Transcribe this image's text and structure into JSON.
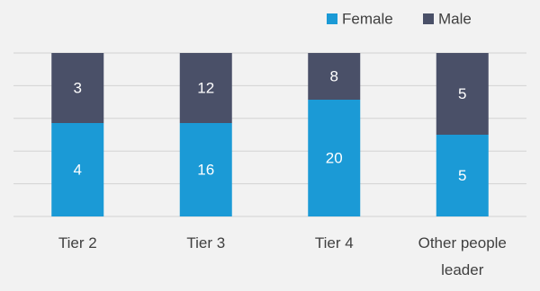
{
  "chart_data": {
    "type": "bar",
    "stacking": "percent",
    "categories": [
      "Tier 2",
      "Tier 3",
      "Tier 4",
      "Other people leader"
    ],
    "series": [
      {
        "name": "Female",
        "color": "#1b9ad6",
        "values": [
          4,
          16,
          20,
          5
        ]
      },
      {
        "name": "Male",
        "color": "#4a5068",
        "values": [
          3,
          12,
          8,
          5
        ]
      }
    ],
    "ylim": [
      0,
      100
    ],
    "yticks": [
      0,
      20,
      40,
      60,
      80,
      100
    ],
    "ytick_labels": false,
    "grid": true,
    "legend": "top-right"
  }
}
